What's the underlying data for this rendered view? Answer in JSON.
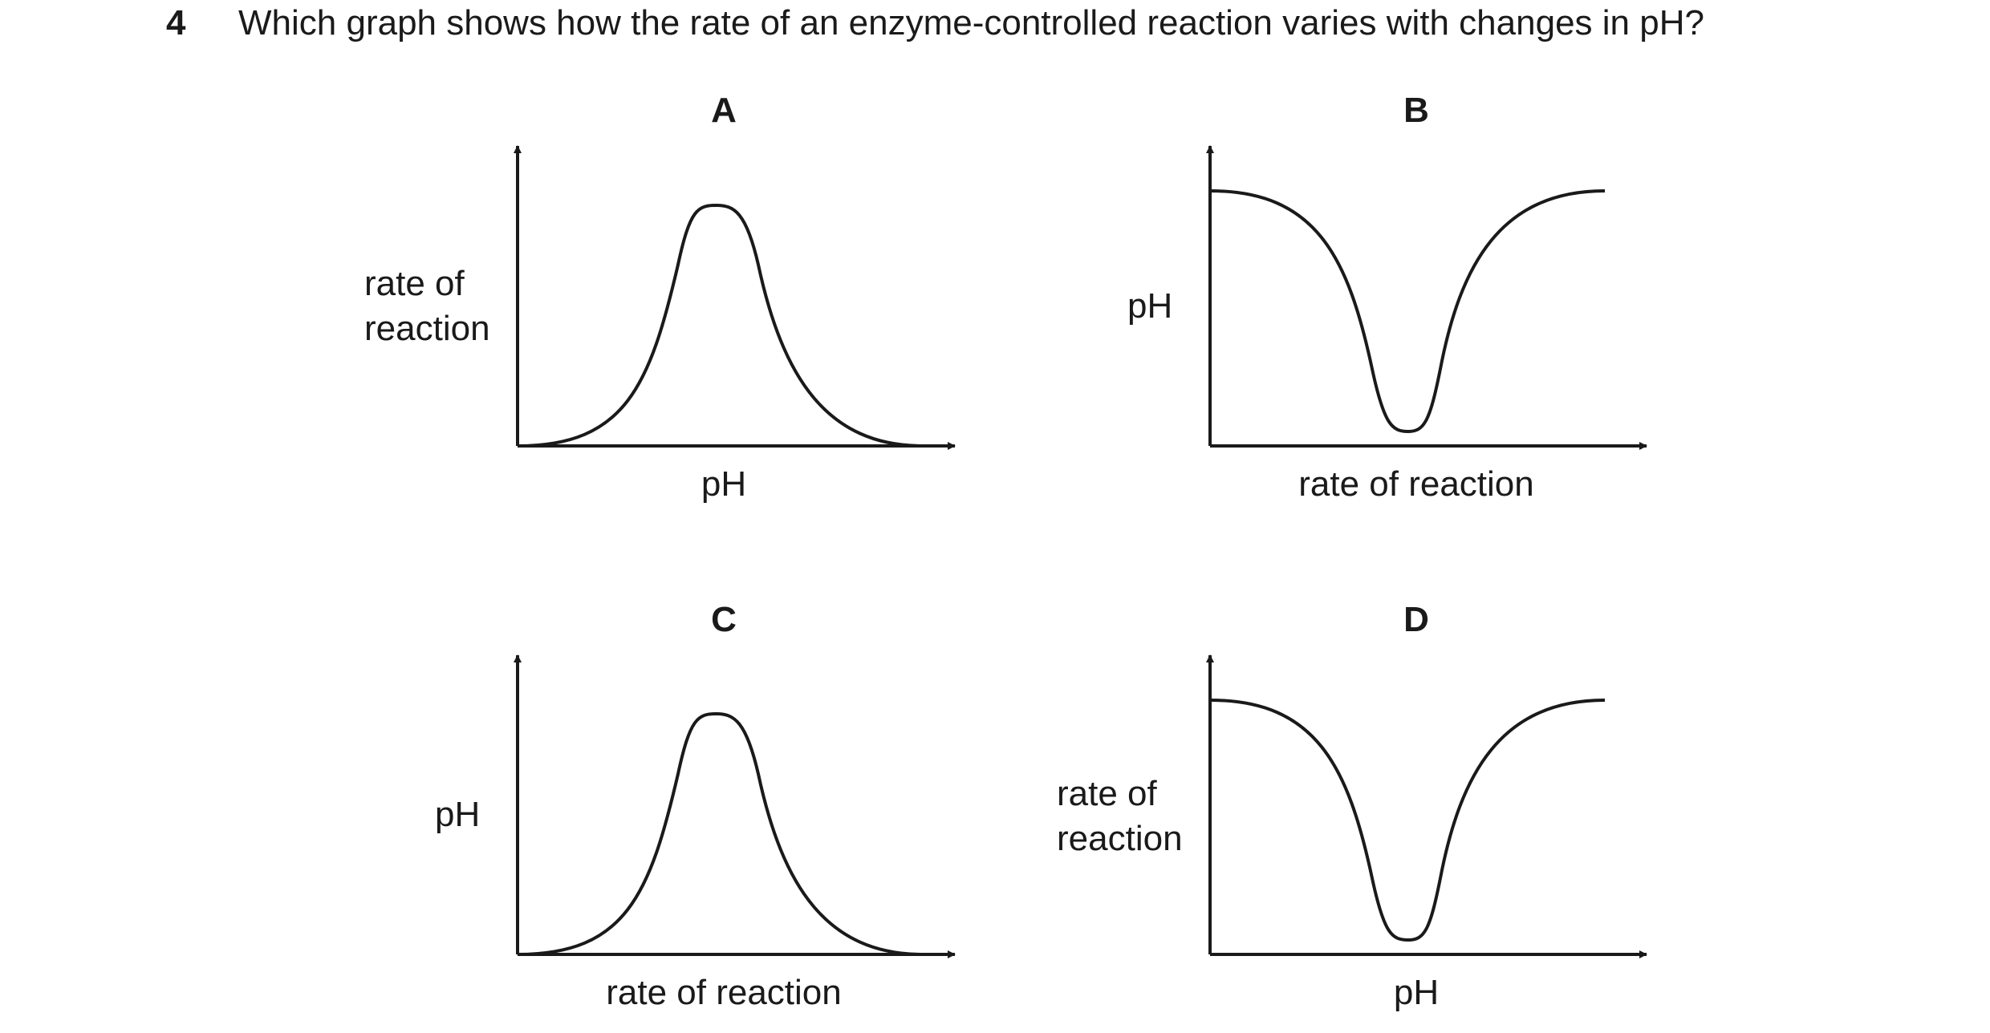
{
  "question": {
    "number": "4",
    "text": "Which graph shows how the rate of an enzyme-controlled reaction varies with changes in pH?"
  },
  "options": [
    {
      "letter": "A",
      "x_label": "pH",
      "y_label_lines": [
        "rate of",
        "reaction"
      ],
      "curve": "peak"
    },
    {
      "letter": "B",
      "x_label": "rate of reaction",
      "y_label_lines": [
        "pH"
      ],
      "curve": "trough"
    },
    {
      "letter": "C",
      "x_label": "rate of reaction",
      "y_label_lines": [
        "pH"
      ],
      "curve": "peak"
    },
    {
      "letter": "D",
      "x_label": "pH",
      "y_label_lines": [
        "rate of",
        "reaction"
      ],
      "curve": "trough"
    }
  ]
}
